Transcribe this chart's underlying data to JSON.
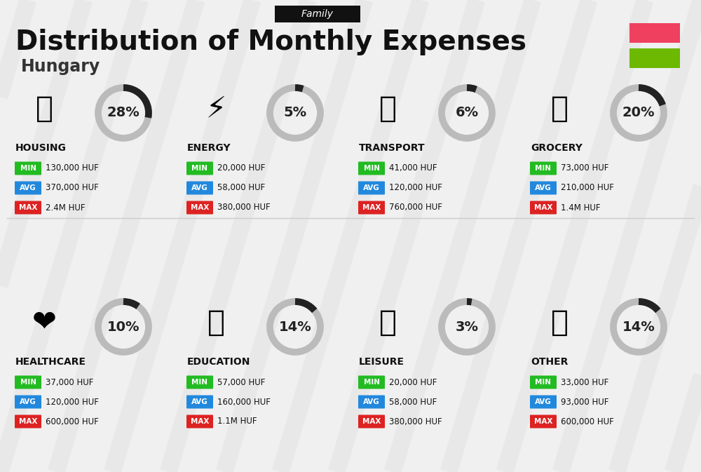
{
  "title": "Distribution of Monthly Expenses",
  "subtitle": "Hungary",
  "tag": "Family",
  "background_color": "#f0f0f0",
  "title_color": "#111111",
  "subtitle_color": "#333333",
  "tag_bg": "#111111",
  "tag_text_color": "#ffffff",
  "flag_red": "#f04060",
  "flag_green": "#6db800",
  "categories": [
    {
      "name": "HOUSING",
      "percent": 28,
      "min_val": "130,000 HUF",
      "avg_val": "370,000 HUF",
      "max_val": "2.4M HUF",
      "row": 0,
      "col": 0
    },
    {
      "name": "ENERGY",
      "percent": 5,
      "min_val": "20,000 HUF",
      "avg_val": "58,000 HUF",
      "max_val": "380,000 HUF",
      "row": 0,
      "col": 1
    },
    {
      "name": "TRANSPORT",
      "percent": 6,
      "min_val": "41,000 HUF",
      "avg_val": "120,000 HUF",
      "max_val": "760,000 HUF",
      "row": 0,
      "col": 2
    },
    {
      "name": "GROCERY",
      "percent": 20,
      "min_val": "73,000 HUF",
      "avg_val": "210,000 HUF",
      "max_val": "1.4M HUF",
      "row": 0,
      "col": 3
    },
    {
      "name": "HEALTHCARE",
      "percent": 10,
      "min_val": "37,000 HUF",
      "avg_val": "120,000 HUF",
      "max_val": "600,000 HUF",
      "row": 1,
      "col": 0
    },
    {
      "name": "EDUCATION",
      "percent": 14,
      "min_val": "57,000 HUF",
      "avg_val": "160,000 HUF",
      "max_val": "1.1M HUF",
      "row": 1,
      "col": 1
    },
    {
      "name": "LEISURE",
      "percent": 3,
      "min_val": "20,000 HUF",
      "avg_val": "58,000 HUF",
      "max_val": "380,000 HUF",
      "row": 1,
      "col": 2
    },
    {
      "name": "OTHER",
      "percent": 14,
      "min_val": "33,000 HUF",
      "avg_val": "93,000 HUF",
      "max_val": "600,000 HUF",
      "row": 1,
      "col": 3
    }
  ],
  "min_color": "#22bb22",
  "avg_color": "#2288dd",
  "max_color": "#dd2222",
  "label_text_color": "#ffffff",
  "value_text_color": "#111111",
  "donut_filled_color": "#222222",
  "donut_empty_color": "#bbbbbb",
  "donut_text_color": "#222222",
  "category_name_color": "#111111"
}
